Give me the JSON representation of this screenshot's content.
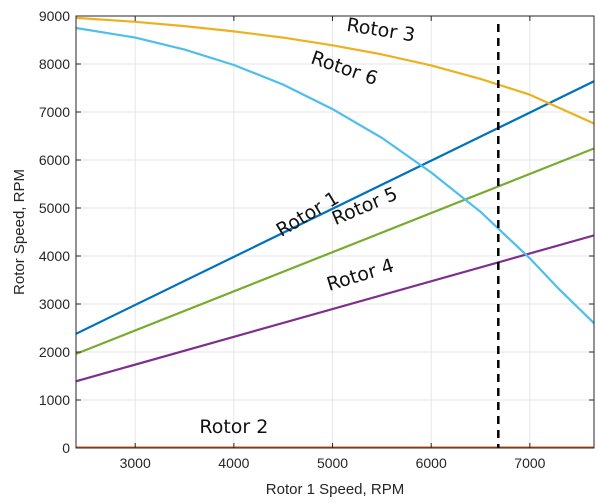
{
  "chart_data": {
    "type": "line",
    "title": "",
    "xlabel": "Rotor 1 Speed, RPM",
    "ylabel": "Rotor Speed, RPM",
    "xlim": [
      2400,
      7650
    ],
    "ylim": [
      0,
      9000
    ],
    "xticks": [
      3000,
      4000,
      5000,
      6000,
      7000
    ],
    "yticks": [
      0,
      1000,
      2000,
      3000,
      4000,
      5000,
      6000,
      7000,
      8000,
      9000
    ],
    "grid": true,
    "legend": "none",
    "series": [
      {
        "name": "Rotor 1",
        "color": "#0072BD",
        "x": [
          2400,
          7650
        ],
        "y": [
          2380,
          7640
        ]
      },
      {
        "name": "Rotor 2",
        "color": "#D95319",
        "x": [
          2400,
          7650
        ],
        "y": [
          0,
          0
        ]
      },
      {
        "name": "Rotor 3",
        "color": "#EDB120",
        "x": [
          2400,
          3000,
          3500,
          4000,
          4500,
          5000,
          5500,
          6000,
          6500,
          7000,
          7650
        ],
        "y": [
          8960,
          8880,
          8790,
          8680,
          8550,
          8390,
          8200,
          7970,
          7690,
          7360,
          6760
        ]
      },
      {
        "name": "Rotor 4",
        "color": "#7E2F8E",
        "x": [
          2400,
          7650
        ],
        "y": [
          1390,
          4430
        ]
      },
      {
        "name": "Rotor 5",
        "color": "#77AC30",
        "x": [
          2400,
          7650
        ],
        "y": [
          1960,
          6240
        ]
      },
      {
        "name": "Rotor 6",
        "color": "#4DBEEE",
        "x": [
          2400,
          3000,
          3500,
          4000,
          4500,
          5000,
          5500,
          6000,
          6500,
          7000,
          7300,
          7650
        ],
        "y": [
          8750,
          8550,
          8300,
          7980,
          7570,
          7060,
          6460,
          5740,
          4920,
          3950,
          3300,
          2600
        ]
      }
    ],
    "annotations": [
      {
        "text": "Rotor 1",
        "series": "Rotor 1",
        "x": 4780,
        "y": 4760,
        "angle": -31
      },
      {
        "text": "Rotor 2",
        "series": "Rotor 2",
        "x": 4000,
        "y": 310,
        "angle": 0
      },
      {
        "text": "Rotor 3",
        "series": "Rotor 3",
        "x": 5480,
        "y": 8580,
        "angle": 9
      },
      {
        "text": "Rotor 4",
        "series": "Rotor 4",
        "x": 5300,
        "y": 3480,
        "angle": -17
      },
      {
        "text": "Rotor 5",
        "series": "Rotor 5",
        "x": 5350,
        "y": 4920,
        "angle": -23
      },
      {
        "text": "Rotor 6",
        "series": "Rotor 6",
        "x": 5100,
        "y": 7790,
        "angle": 19
      }
    ],
    "reference_line": {
      "x": 6680,
      "style": "dashed",
      "color": "#000000"
    }
  }
}
